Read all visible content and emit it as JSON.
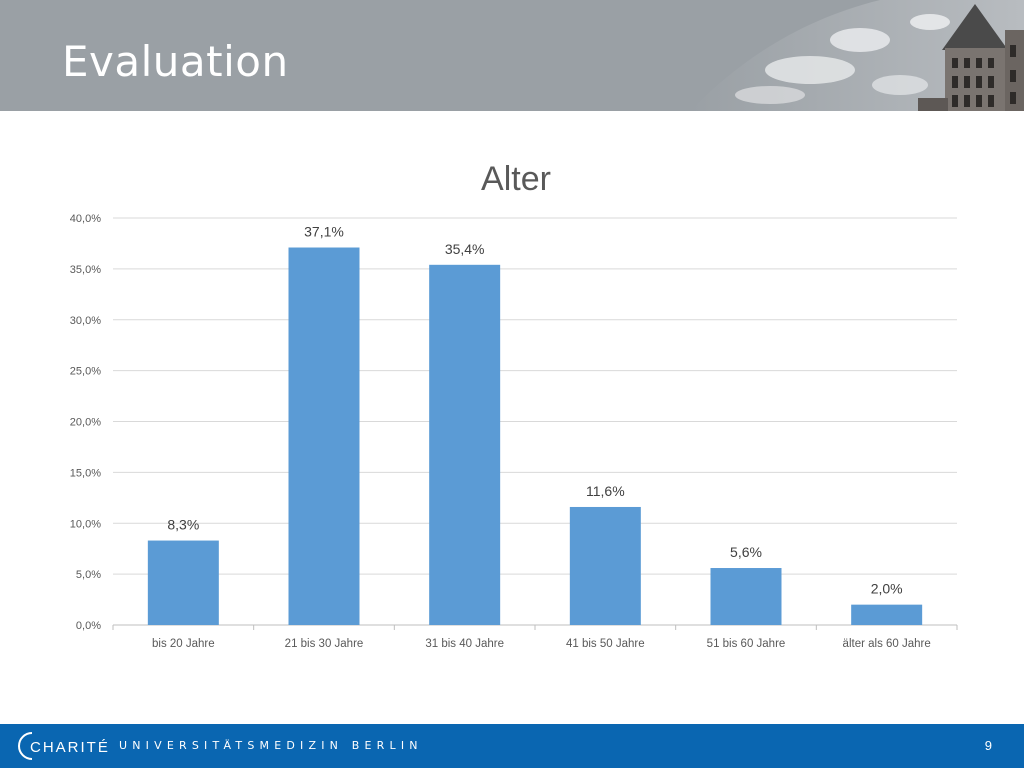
{
  "slide": {
    "title": "Evaluation",
    "page_number": "9"
  },
  "footer": {
    "logo_text": "CHARITÉ",
    "institution": "UNIVERSITÄTSMEDIZIN BERLIN"
  },
  "colors": {
    "header_bg": "#9aa0a5",
    "bar": "#5b9bd5",
    "footer_bg": "#0a66b1",
    "gridline": "#d9d9d9",
    "text": "#595959"
  },
  "chart_data": {
    "type": "bar",
    "title": "Alter",
    "categories": [
      "bis 20 Jahre",
      "21 bis 30 Jahre",
      "31 bis 40 Jahre",
      "41 bis 50 Jahre",
      "51 bis 60 Jahre",
      "älter als 60 Jahre"
    ],
    "values": [
      8.3,
      37.1,
      35.4,
      11.6,
      5.6,
      2.0
    ],
    "data_labels": [
      "8,3%",
      "37,1%",
      "35,4%",
      "11,6%",
      "5,6%",
      "2,0%"
    ],
    "y_ticks": [
      "0,0%",
      "5,0%",
      "10,0%",
      "15,0%",
      "20,0%",
      "25,0%",
      "30,0%",
      "35,0%",
      "40,0%"
    ],
    "ylim": [
      0,
      40
    ],
    "xlabel": "",
    "ylabel": "",
    "grid": true,
    "legend": "none"
  }
}
